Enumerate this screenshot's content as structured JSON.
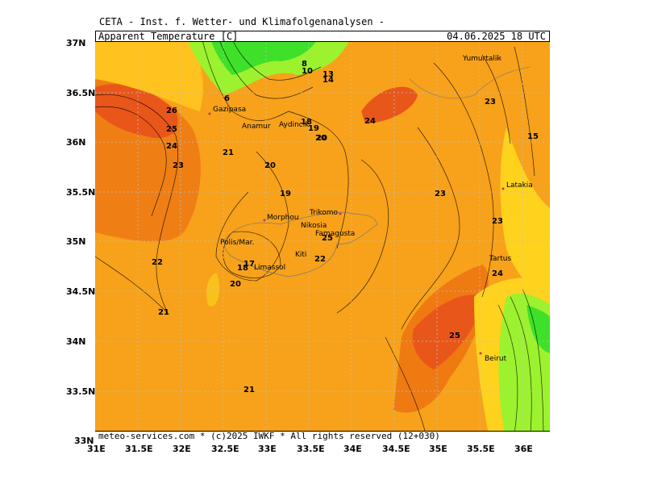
{
  "header": "CETA - Inst. f. Wetter- und Klimafolgenanalysen -",
  "title": {
    "variable": "Apparent_Temperature [C]",
    "datetime": "04.06.2025 18 UTC"
  },
  "footer": "meteo-services.com * (c)2025 IWKF * All rights reserved (12+030)",
  "y_axis": [
    "37N",
    "36.5N",
    "36N",
    "35.5N",
    "35N",
    "34.5N",
    "34N",
    "33.5N",
    "33N"
  ],
  "x_axis": [
    "31E",
    "31.5E",
    "32E",
    "32.5E",
    "33E",
    "33.5E",
    "34E",
    "34.5E",
    "35E",
    "35.5E",
    "36E"
  ],
  "cities": [
    {
      "name": "Yumurtalik"
    },
    {
      "name": "Gazipasa"
    },
    {
      "name": "Anamur"
    },
    {
      "name": "Aydincik"
    },
    {
      "name": "Latakia"
    },
    {
      "name": "Morphou"
    },
    {
      "name": "Trikomo"
    },
    {
      "name": "Nikosia"
    },
    {
      "name": "Famagusta"
    },
    {
      "name": "Polis/Mar."
    },
    {
      "name": "Kiti"
    },
    {
      "name": "Limassol"
    },
    {
      "name": "Tartus"
    },
    {
      "name": "Beirut"
    }
  ],
  "contour_labels": [
    "26",
    "25",
    "24",
    "23",
    "22",
    "21",
    "21",
    "20",
    "20",
    "19",
    "17",
    "18",
    "20",
    "22",
    "25",
    "24",
    "23",
    "23",
    "23",
    "24",
    "15",
    "25",
    "24",
    "21",
    "6",
    "8",
    "10",
    "13",
    "14",
    "18",
    "19",
    "20"
  ],
  "colors": {
    "orange": "#f7a21a",
    "dark_orange": "#ef7a12",
    "yellow": "#ffd21e",
    "green": "#3fe02a",
    "lime": "#9cf22e",
    "red_orange": "#e9561a"
  }
}
